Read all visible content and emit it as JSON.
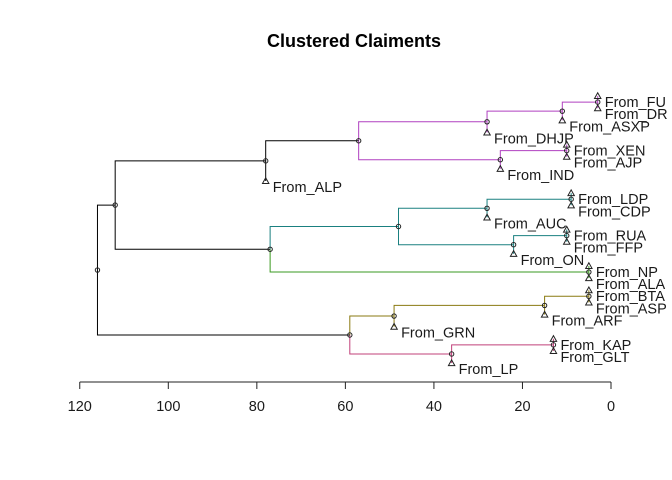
{
  "chart_data": {
    "type": "dendrogram",
    "title": "Clustered Claiments",
    "orientation": "horizontal",
    "xlim": [
      120,
      0
    ],
    "xticks": [
      120,
      100,
      80,
      60,
      40,
      20,
      0
    ],
    "colors": {
      "root": "#000000",
      "purple": "#b040c0",
      "teal": "#1a8080",
      "green": "#3a9a20",
      "olive": "#8a7a10",
      "magenta": "#c0407a"
    },
    "leaves": [
      {
        "label": "From_FU",
        "height": 3
      },
      {
        "label": "From_DR",
        "height": 3
      },
      {
        "label": "From_ASXP",
        "height": 11
      },
      {
        "label": "From_DHJP",
        "height": 28
      },
      {
        "label": "From_XEN",
        "height": 10
      },
      {
        "label": "From_AJP",
        "height": 10
      },
      {
        "label": "From_IND",
        "height": 25
      },
      {
        "label": "From_ALP",
        "height": 78
      },
      {
        "label": "From_LDP",
        "height": 9
      },
      {
        "label": "From_CDP",
        "height": 9
      },
      {
        "label": "From_AUC",
        "height": 28
      },
      {
        "label": "From_RUA",
        "height": 10
      },
      {
        "label": "From_FFP",
        "height": 10
      },
      {
        "label": "From_ON",
        "height": 22
      },
      {
        "label": "From_NP",
        "height": 5
      },
      {
        "label": "From_ALA",
        "height": 5
      },
      {
        "label": "From_BTA",
        "height": 5
      },
      {
        "label": "From_ASP",
        "height": 5
      },
      {
        "label": "From_ARF",
        "height": 15
      },
      {
        "label": "From_GRN",
        "height": 49
      },
      {
        "label": "From_KAP",
        "height": 13
      },
      {
        "label": "From_GLT",
        "height": 13
      },
      {
        "label": "From_LP",
        "height": 36
      }
    ],
    "merges": [
      {
        "id": "m1",
        "children": [
          "From_FU",
          "From_DR"
        ],
        "height": 3,
        "color": "purple"
      },
      {
        "id": "m2",
        "children": [
          "m1",
          "From_ASXP"
        ],
        "height": 11,
        "color": "purple"
      },
      {
        "id": "m3",
        "children": [
          "m2",
          "From_DHJP"
        ],
        "height": 28,
        "color": "purple"
      },
      {
        "id": "m4",
        "children": [
          "From_XEN",
          "From_AJP"
        ],
        "height": 10,
        "color": "purple"
      },
      {
        "id": "m5",
        "children": [
          "m4",
          "From_IND"
        ],
        "height": 25,
        "color": "purple"
      },
      {
        "id": "m6",
        "children": [
          "m3",
          "m5"
        ],
        "height": 57,
        "color": "purple"
      },
      {
        "id": "m7",
        "children": [
          "m6",
          "From_ALP"
        ],
        "height": 78,
        "color": "root"
      },
      {
        "id": "m8",
        "children": [
          "From_LDP",
          "From_CDP"
        ],
        "height": 9,
        "color": "teal"
      },
      {
        "id": "m9",
        "children": [
          "m8",
          "From_AUC"
        ],
        "height": 28,
        "color": "teal"
      },
      {
        "id": "m10",
        "children": [
          "From_RUA",
          "From_FFP"
        ],
        "height": 10,
        "color": "teal"
      },
      {
        "id": "m11",
        "children": [
          "m10",
          "From_ON"
        ],
        "height": 22,
        "color": "teal"
      },
      {
        "id": "m12",
        "children": [
          "m9",
          "m11"
        ],
        "height": 48,
        "color": "teal"
      },
      {
        "id": "m13",
        "children": [
          "From_NP",
          "From_ALA"
        ],
        "height": 5,
        "color": "green"
      },
      {
        "id": "m14",
        "children": [
          "m12",
          "m13"
        ],
        "height": 77,
        "color": "root",
        "child_colors": [
          "teal",
          "green"
        ]
      },
      {
        "id": "m15",
        "children": [
          "m7",
          "m14"
        ],
        "height": 112,
        "color": "root"
      },
      {
        "id": "m16",
        "children": [
          "From_BTA",
          "From_ASP"
        ],
        "height": 5,
        "color": "olive"
      },
      {
        "id": "m17",
        "children": [
          "m16",
          "From_ARF"
        ],
        "height": 15,
        "color": "olive"
      },
      {
        "id": "m18",
        "children": [
          "m17",
          "From_GRN"
        ],
        "height": 49,
        "color": "olive"
      },
      {
        "id": "m19",
        "children": [
          "From_KAP",
          "From_GLT"
        ],
        "height": 13,
        "color": "magenta"
      },
      {
        "id": "m20",
        "children": [
          "m19",
          "From_LP"
        ],
        "height": 36,
        "color": "magenta"
      },
      {
        "id": "m21",
        "children": [
          "m18",
          "m20"
        ],
        "height": 59,
        "color": "root",
        "child_colors": [
          "olive",
          "magenta"
        ]
      },
      {
        "id": "m22",
        "children": [
          "m15",
          "m21"
        ],
        "height": 116,
        "color": "root"
      }
    ]
  }
}
